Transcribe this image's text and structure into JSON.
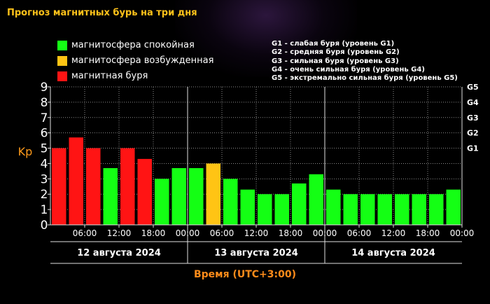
{
  "title": "Прогноз магнитных бурь на три дня",
  "legend": [
    {
      "label": "магнитосфера спокойная",
      "color": "#14ff14"
    },
    {
      "label": "магнитосфера возбужденная",
      "color": "#ffc414"
    },
    {
      "label": "магнитная буря",
      "color": "#ff1414"
    }
  ],
  "g_legend": [
    "G1 - слабая буря (уровень G1)",
    "G2 - средняя буря (уровень G2)",
    "G3 - сильная буря (уровень G3)",
    "G4 - очень сильная буря (уровень G4)",
    "G5 - экстремально сильная буря (уровень G5)"
  ],
  "chart_data": {
    "type": "bar",
    "title": "",
    "ylabel": "Kp",
    "xlabel": "Время (UTC+3:00)",
    "ylim": [
      0,
      9
    ],
    "y_ticks": [
      "0",
      "1",
      "2",
      "3",
      "4",
      "5",
      "6",
      "7",
      "8",
      "9"
    ],
    "right_ticks": [
      {
        "label": "G1",
        "value": 5
      },
      {
        "label": "G2",
        "value": 6
      },
      {
        "label": "G3",
        "value": 7
      },
      {
        "label": "G4",
        "value": 8
      },
      {
        "label": "G5",
        "value": 9
      }
    ],
    "x_ticks": [
      "06:00",
      "12:00",
      "18:00",
      "00:00",
      "06:00",
      "12:00",
      "18:00",
      "00:00",
      "06:00",
      "12:00",
      "18:00",
      "00:00"
    ],
    "days": [
      "12 августа 2024",
      "13 августа 2024",
      "14 августа 2024"
    ],
    "values": [
      5,
      5.7,
      5,
      3.7,
      5,
      4.3,
      3,
      3.7,
      3.7,
      4,
      3,
      2.3,
      2,
      2,
      2.7,
      3.3,
      2.3,
      2,
      2,
      2,
      2,
      2,
      2,
      2.3
    ],
    "colors": [
      "red",
      "red",
      "red",
      "green",
      "red",
      "red",
      "green",
      "green",
      "green",
      "yellow",
      "green",
      "green",
      "green",
      "green",
      "green",
      "green",
      "green",
      "green",
      "green",
      "green",
      "green",
      "green",
      "green",
      "green"
    ],
    "grid": true
  }
}
